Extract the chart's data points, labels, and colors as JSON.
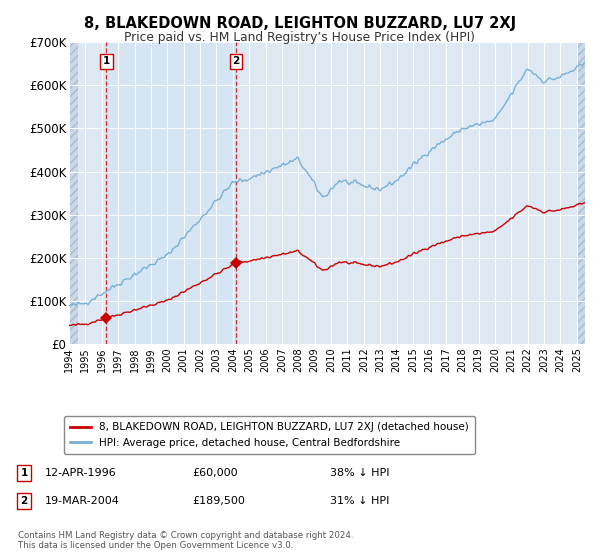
{
  "title": "8, BLAKEDOWN ROAD, LEIGHTON BUZZARD, LU7 2XJ",
  "subtitle": "Price paid vs. HM Land Registry’s House Price Index (HPI)",
  "legend_label_red": "8, BLAKEDOWN ROAD, LEIGHTON BUZZARD, LU7 2XJ (detached house)",
  "legend_label_blue": "HPI: Average price, detached house, Central Bedfordshire",
  "footnote": "Contains HM Land Registry data © Crown copyright and database right 2024.\nThis data is licensed under the Open Government Licence v3.0.",
  "sale1_date": "12-APR-1996",
  "sale1_price": 60000,
  "sale1_label": "38% ↓ HPI",
  "sale1_year": 1996.28,
  "sale2_date": "19-MAR-2004",
  "sale2_price": 189500,
  "sale2_label": "31% ↓ HPI",
  "sale2_year": 2004.21,
  "ylim": [
    0,
    700000
  ],
  "yticks": [
    0,
    100000,
    200000,
    300000,
    400000,
    500000,
    600000,
    700000
  ],
  "ytick_labels": [
    "£0",
    "£100K",
    "£200K",
    "£300K",
    "£400K",
    "£500K",
    "£600K",
    "£700K"
  ],
  "hpi_color": "#7ab0d4",
  "price_color": "#cc0000",
  "background_color": "#ffffff",
  "plot_bg_color": "#dde8f3",
  "marker_color": "#cc0000",
  "xmin": 1994.0,
  "xmax": 2025.5
}
